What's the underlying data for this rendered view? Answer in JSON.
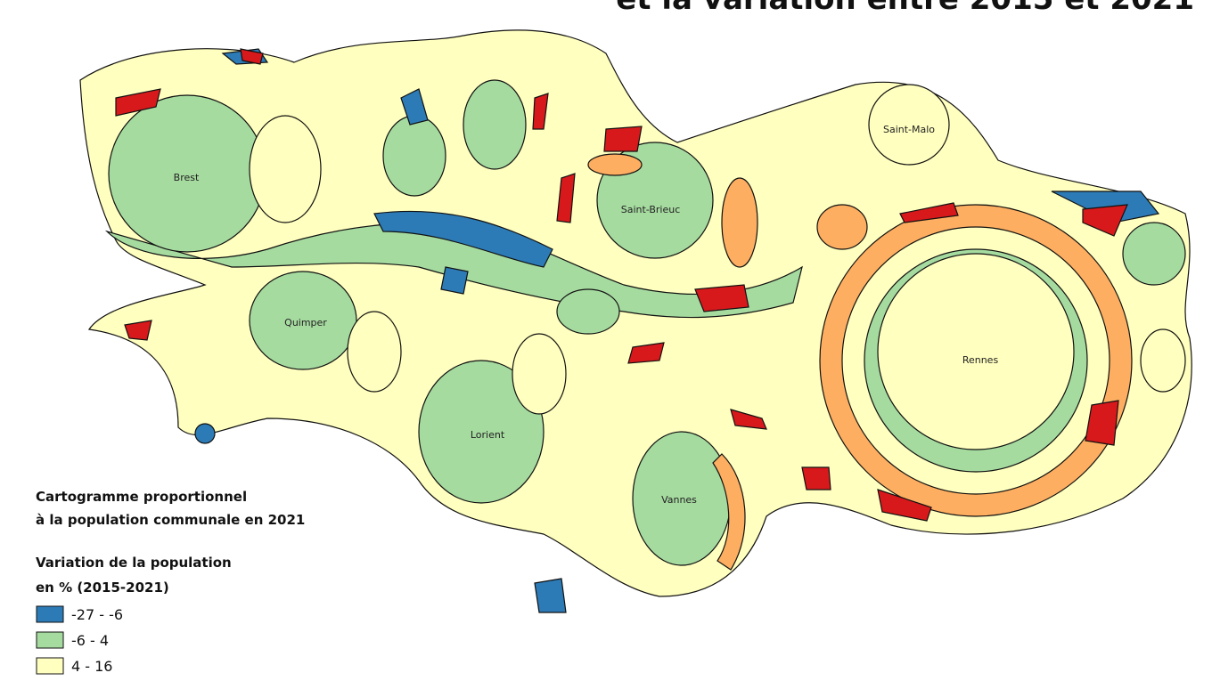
{
  "title": "et la variation entre 2015 et 2021",
  "cities": [
    "Brest",
    "Saint-Brieuc",
    "Saint-Malo",
    "Quimper",
    "Lorient",
    "Vannes",
    "Rennes"
  ],
  "legend": {
    "subtitle": [
      "Cartogramme proportionnel",
      "à la population communale en 2021"
    ],
    "heading": [
      "Variation de la population",
      "en % (2015-2021)"
    ],
    "items": [
      {
        "label": "-27 - -6",
        "color": "#2c7bb6"
      },
      {
        "label": "-6 - 4",
        "color": "#a6dba0"
      },
      {
        "label": "4 - 16",
        "color": "#ffffbf"
      }
    ]
  }
}
